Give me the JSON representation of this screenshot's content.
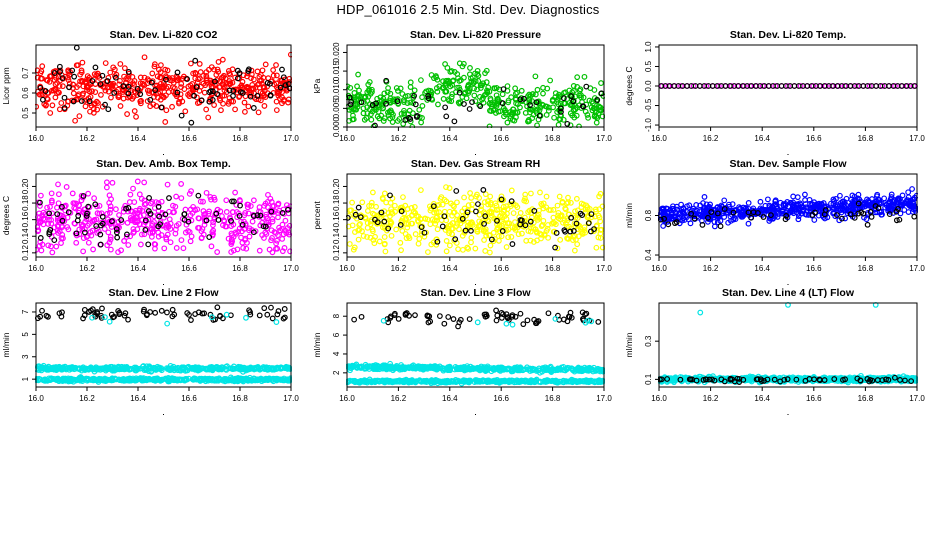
{
  "page": {
    "title": "HDP_061016  2.5 Min. Std. Dev. Diagnostics"
  },
  "colors": {
    "red": "#ff0000",
    "green": "#00c000",
    "magenta": "#ff00ff",
    "yellow": "#ffff00",
    "blue": "#0000ff",
    "cyan": "#00e5e5",
    "black": "#000000"
  },
  "chart_data": [
    {
      "id": "co2",
      "type": "scatter",
      "title": "Stan. Dev. Li-820 CO2",
      "ylabel": "Licor ppm",
      "xlabel": "",
      "xlim": [
        16.0,
        17.0
      ],
      "ylim": [
        0.43,
        0.84
      ],
      "x_ticks": [
        "16.0",
        "16.2",
        "16.4",
        "16.6",
        "16.8",
        "17.0"
      ],
      "y_ticks": [
        0.5,
        0.6,
        0.7
      ],
      "y_tick_labels": [
        "0.5",
        "0.6",
        "0.7"
      ],
      "series": [
        {
          "name": "primary",
          "color": "red",
          "count": 520,
          "mean": 0.63,
          "spread": 0.055,
          "trend": 0.0,
          "min": 0.45,
          "max": 0.83
        },
        {
          "name": "highlight",
          "color": "black",
          "count": 75,
          "mean": 0.64,
          "spread": 0.06,
          "trend": 0.0,
          "min": 0.45,
          "max": 0.83
        }
      ]
    },
    {
      "id": "pressure",
      "type": "scatter",
      "title": "Stan. Dev. Li-820 Pressure",
      "ylabel": "kPa",
      "xlabel": "",
      "xlim": [
        16.0,
        17.0
      ],
      "ylim": [
        0.0,
        0.022
      ],
      "x_ticks": [
        "16.0",
        "16.2",
        "16.4",
        "16.6",
        "16.8",
        "17.0"
      ],
      "y_ticks": [
        0.0,
        0.005,
        0.01,
        0.015,
        0.02
      ],
      "y_tick_labels": [
        "0.000",
        "0.005",
        "0.010",
        "0.015",
        "0.020"
      ],
      "series": [
        {
          "name": "primary",
          "color": "green",
          "count": 480,
          "mean": 0.006,
          "spread": 0.0028,
          "trend": 0.0,
          "min": 0.0,
          "max": 0.021,
          "bump": {
            "start": 16.3,
            "end": 16.55,
            "add": 0.005
          }
        },
        {
          "name": "highlight",
          "color": "black",
          "count": 45,
          "mean": 0.006,
          "spread": 0.002,
          "trend": 0.0,
          "min": 0.0,
          "max": 0.02
        }
      ]
    },
    {
      "id": "temp",
      "type": "line_points",
      "title": "Stan. Dev. Li-820 Temp.",
      "ylabel": "degrees C",
      "xlabel": "",
      "xlim": [
        16.0,
        17.0
      ],
      "ylim": [
        -1.05,
        1.05
      ],
      "x_ticks": [
        "16.0",
        "16.2",
        "16.4",
        "16.6",
        "16.8",
        "17.0"
      ],
      "y_ticks": [
        -1.0,
        -0.5,
        0.0,
        0.5,
        1.0
      ],
      "y_tick_labels": [
        "-1.0",
        "-0.5",
        "0.0",
        "0.5",
        "1.0"
      ],
      "series": [
        {
          "name": "primary",
          "color": "magenta",
          "constant": 0.0,
          "count": 41
        },
        {
          "name": "highlight",
          "color": "black",
          "constant": 0.0,
          "count": 60
        }
      ]
    },
    {
      "id": "ambbox",
      "type": "scatter",
      "title": "Stan. Dev. Amb. Box Temp.",
      "ylabel": "degrees C",
      "xlabel": "",
      "xlim": [
        16.0,
        17.0
      ],
      "ylim": [
        0.115,
        0.215
      ],
      "x_ticks": [
        "16.0",
        "16.2",
        "16.4",
        "16.6",
        "16.8",
        "17.0"
      ],
      "y_ticks": [
        0.12,
        0.14,
        0.16,
        0.18,
        0.2
      ],
      "y_tick_labels": [
        "0.12",
        "0.14",
        "0.16",
        "0.18",
        "0.20"
      ],
      "series": [
        {
          "name": "primary",
          "color": "magenta",
          "count": 500,
          "mean": 0.158,
          "spread": 0.019,
          "trend": 0.0,
          "min": 0.12,
          "max": 0.21
        },
        {
          "name": "highlight",
          "color": "black",
          "count": 70,
          "mean": 0.16,
          "spread": 0.018,
          "trend": 0.0,
          "min": 0.12,
          "max": 0.21
        }
      ]
    },
    {
      "id": "rh",
      "type": "scatter",
      "title": "Stan. Dev. Gas Stream RH",
      "ylabel": "percent",
      "xlabel": "",
      "xlim": [
        16.0,
        17.0
      ],
      "ylim": [
        0.115,
        0.215
      ],
      "x_ticks": [
        "16.0",
        "16.2",
        "16.4",
        "16.6",
        "16.8",
        "17.0"
      ],
      "y_ticks": [
        0.12,
        0.14,
        0.16,
        0.18,
        0.2
      ],
      "y_tick_labels": [
        "0.12",
        "0.14",
        "0.16",
        "0.18",
        "0.20"
      ],
      "series": [
        {
          "name": "primary",
          "color": "yellow",
          "count": 520,
          "mean": 0.158,
          "spread": 0.017,
          "trend": 0.0,
          "min": 0.12,
          "max": 0.21
        },
        {
          "name": "highlight",
          "color": "black",
          "count": 55,
          "mean": 0.16,
          "spread": 0.016,
          "trend": 0.0,
          "min": 0.12,
          "max": 0.21
        }
      ]
    },
    {
      "id": "sampleflow",
      "type": "scatter",
      "title": "Stan. Dev. Sample Flow",
      "ylabel": "ml/min",
      "xlabel": "",
      "xlim": [
        16.0,
        17.0
      ],
      "ylim": [
        0.38,
        1.22
      ],
      "x_ticks": [
        "16.0",
        "16.2",
        "16.4",
        "16.6",
        "16.8",
        "17.0"
      ],
      "y_ticks": [
        0.4,
        0.8
      ],
      "y_tick_labels": [
        "0.4",
        "0.8"
      ],
      "series": [
        {
          "name": "primary",
          "color": "blue",
          "count": 620,
          "mean": 0.86,
          "spread": 0.05,
          "trend": 0.12,
          "min": 0.42,
          "max": 1.18
        },
        {
          "name": "highlight",
          "color": "black",
          "count": 45,
          "mean": 0.8,
          "spread": 0.05,
          "trend": 0.05,
          "min": 0.55,
          "max": 1.0
        }
      ]
    },
    {
      "id": "line2",
      "type": "scatter",
      "title": "Stan. Dev. Line 2 Flow",
      "ylabel": "ml/min",
      "xlabel": "",
      "xlim": [
        16.0,
        17.0
      ],
      "ylim": [
        0.3,
        7.8
      ],
      "x_ticks": [
        "16.0",
        "16.2",
        "16.4",
        "16.6",
        "16.8",
        "17.0"
      ],
      "y_ticks": [
        1,
        3,
        5,
        7
      ],
      "y_tick_labels": [
        "1",
        "3",
        "5",
        "7"
      ],
      "series": [
        {
          "name": "band_high",
          "color": "cyan",
          "count": 420,
          "mean": 1.95,
          "spread": 0.09,
          "trend": 0.0,
          "min": 1.6,
          "max": 2.3
        },
        {
          "name": "band_low",
          "color": "cyan",
          "count": 420,
          "mean": 0.95,
          "spread": 0.07,
          "trend": 0.0,
          "min": 0.6,
          "max": 1.3
        },
        {
          "name": "high_values",
          "color": "black",
          "count": 70,
          "mean": 6.8,
          "spread": 0.25,
          "trend": 0.0,
          "min": 6.0,
          "max": 7.5
        },
        {
          "name": "high_values_alt",
          "color": "cyan",
          "count": 8,
          "mean": 6.3,
          "spread": 0.2,
          "trend": 0.0,
          "min": 5.9,
          "max": 6.8
        }
      ]
    },
    {
      "id": "line3",
      "type": "scatter",
      "title": "Stan. Dev. Line 3 Flow",
      "ylabel": "ml/min",
      "xlabel": "",
      "xlim": [
        16.0,
        17.0
      ],
      "ylim": [
        0.5,
        9.4
      ],
      "x_ticks": [
        "16.0",
        "16.2",
        "16.4",
        "16.6",
        "16.8",
        "17.0"
      ],
      "y_ticks": [
        2,
        4,
        6,
        8
      ],
      "y_tick_labels": [
        "2",
        "4",
        "6",
        "8"
      ],
      "series": [
        {
          "name": "band_high",
          "color": "cyan",
          "count": 420,
          "mean": 2.45,
          "spread": 0.12,
          "trend": -0.3,
          "min": 1.9,
          "max": 3.1
        },
        {
          "name": "band_low",
          "color": "cyan",
          "count": 420,
          "mean": 1.1,
          "spread": 0.07,
          "trend": 0.0,
          "min": 0.8,
          "max": 1.4
        },
        {
          "name": "high_values",
          "color": "black",
          "count": 70,
          "mean": 7.8,
          "spread": 0.3,
          "trend": 0.0,
          "min": 5.8,
          "max": 9.0
        },
        {
          "name": "high_values_alt",
          "color": "cyan",
          "count": 8,
          "mean": 7.3,
          "spread": 0.2,
          "trend": 0.0,
          "min": 6.9,
          "max": 7.8
        }
      ]
    },
    {
      "id": "line4",
      "type": "scatter",
      "title": "Stan. Dev. Line 4 (LT) Flow",
      "ylabel": "ml/min",
      "xlabel": "",
      "xlim": [
        16.0,
        17.0
      ],
      "ylim": [
        0.06,
        0.5
      ],
      "x_ticks": [
        "16.0",
        "16.2",
        "16.4",
        "16.6",
        "16.8",
        "17.0"
      ],
      "y_ticks": [
        0.1,
        0.3
      ],
      "y_tick_labels": [
        "0.1",
        "0.3"
      ],
      "series": [
        {
          "name": "band",
          "color": "cyan",
          "count": 600,
          "mean": 0.1,
          "spread": 0.006,
          "trend": 0.0,
          "min": 0.08,
          "max": 0.12
        },
        {
          "name": "highlight",
          "color": "black",
          "count": 60,
          "mean": 0.098,
          "spread": 0.005,
          "trend": 0.0,
          "min": 0.085,
          "max": 0.112
        },
        {
          "name": "outliers",
          "color": "cyan",
          "points": [
            [
              16.16,
              0.45
            ],
            [
              16.5,
              0.49
            ],
            [
              16.84,
              0.49
            ]
          ]
        }
      ]
    }
  ]
}
